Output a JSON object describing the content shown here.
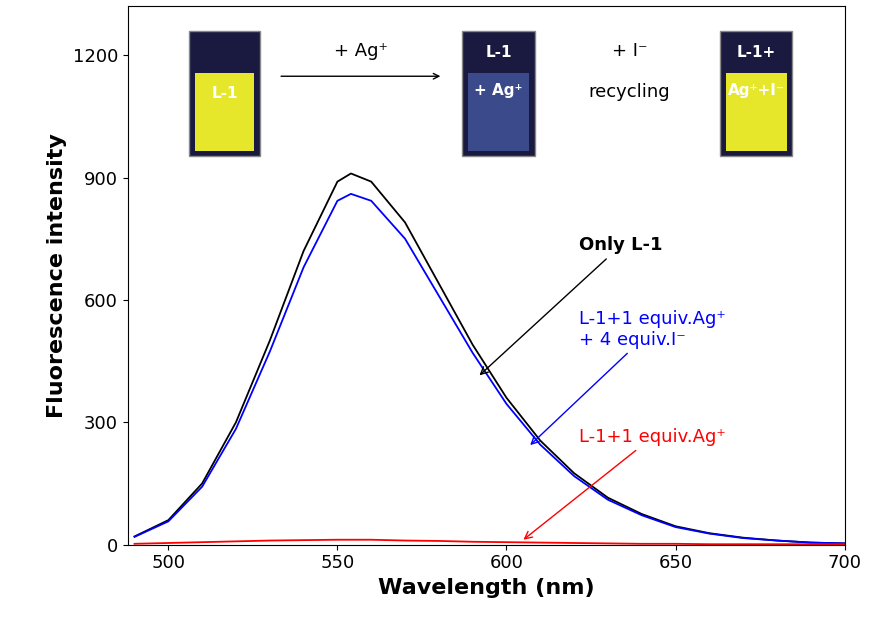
{
  "chart_data": {
    "type": "line",
    "x_label": "Wavelength (nm)",
    "y_label": "Fluorescence intensity",
    "x": [
      490,
      500,
      510,
      520,
      530,
      540,
      550,
      554,
      560,
      570,
      580,
      590,
      600,
      610,
      620,
      630,
      640,
      650,
      660,
      670,
      680,
      690,
      700
    ],
    "series": [
      {
        "name": "Only L-1",
        "color": "#000000",
        "values": [
          20,
          60,
          150,
          300,
          500,
          720,
          890,
          910,
          890,
          790,
          640,
          490,
          360,
          255,
          175,
          115,
          75,
          45,
          28,
          17,
          10,
          5,
          3
        ]
      },
      {
        "name": "L-1+1 equiv.Ag⁺\n+ 4 equiv.I⁻",
        "color": "#0000ff",
        "values": [
          19,
          57,
          142,
          284,
          473,
          680,
          843,
          860,
          843,
          750,
          610,
          470,
          345,
          245,
          168,
          110,
          72,
          43,
          27,
          16,
          10,
          5,
          3
        ]
      },
      {
        "name": "L-1+1 equiv.Ag⁺",
        "color": "#ff0000",
        "values": [
          2,
          4,
          6,
          8,
          10,
          11,
          12,
          12,
          12,
          10,
          9,
          7,
          6,
          5,
          4,
          3,
          2,
          2,
          1,
          1,
          1,
          1,
          1
        ]
      }
    ],
    "xlim": [
      488,
      700
    ],
    "ylim": [
      0,
      1320
    ],
    "xticks": [
      500,
      550,
      600,
      650,
      700
    ],
    "yticks": [
      0,
      300,
      600,
      900,
      1200
    ],
    "grid": false,
    "insets": [
      [
        "L-1"
      ],
      [
        "L-1",
        "+ Ag⁺"
      ],
      [
        "L-1+",
        "Ag⁺+I⁻"
      ]
    ],
    "annotations": [
      "+ Ag⁺",
      "+ I⁻",
      "recycling"
    ]
  }
}
